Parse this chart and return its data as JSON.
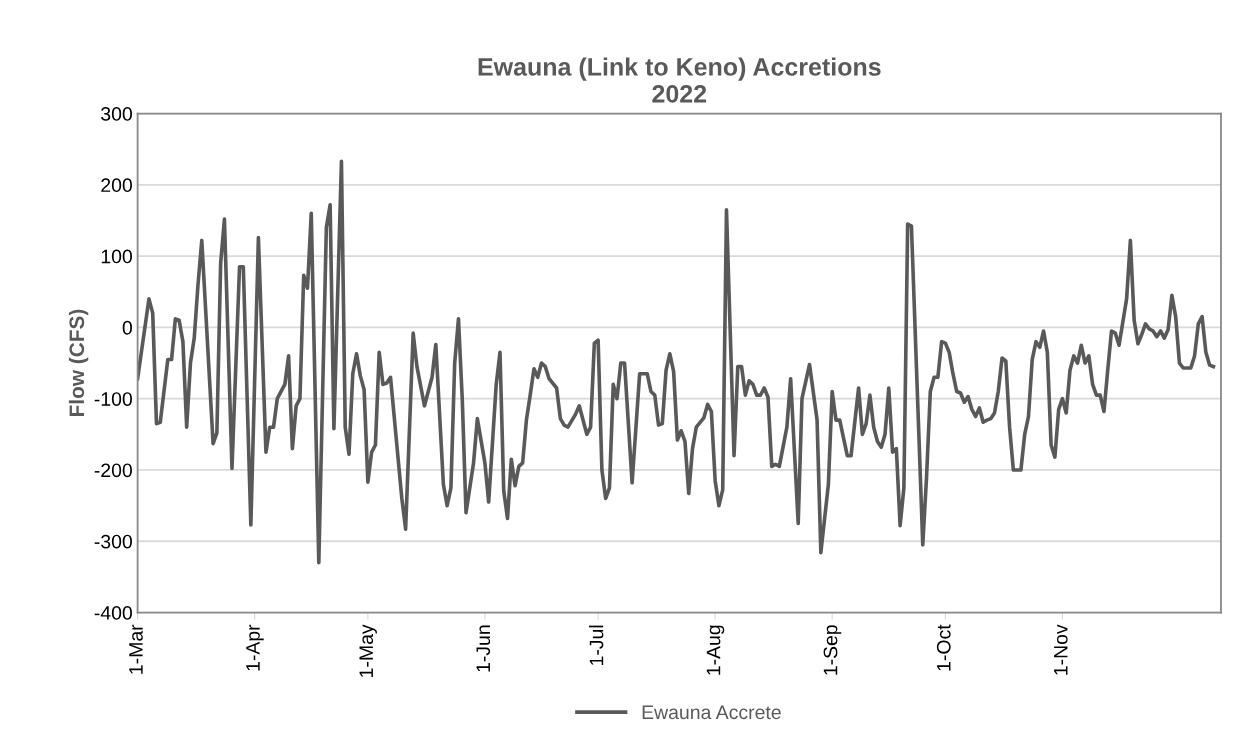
{
  "chart_data": {
    "type": "line",
    "title": "Ewauna (Link to Keno) Accretions\n2022",
    "ylabel": "Flow (CFS)",
    "xlim": [
      "2022-03-01",
      "2022-12-13"
    ],
    "ylim": [
      -400,
      300
    ],
    "yticks": [
      -400,
      -300,
      -200,
      -100,
      0,
      100,
      200,
      300
    ],
    "xticks": [
      {
        "value": "2022-03-01",
        "label": "1-Mar"
      },
      {
        "value": "2022-04-01",
        "label": "1-Apr"
      },
      {
        "value": "2022-05-01",
        "label": "1-May"
      },
      {
        "value": "2022-06-01",
        "label": "1-Jun"
      },
      {
        "value": "2022-07-01",
        "label": "1-Jul"
      },
      {
        "value": "2022-08-01",
        "label": "1-Aug"
      },
      {
        "value": "2022-09-01",
        "label": "1-Sep"
      },
      {
        "value": "2022-10-01",
        "label": "1-Oct"
      },
      {
        "value": "2022-11-01",
        "label": "1-Nov"
      }
    ],
    "grid": "y",
    "legend": "bottom",
    "marker": "none",
    "line_style": "solid",
    "series": [
      {
        "name": "Ewauna Accrete",
        "color": "#595959",
        "x": [
          "2022-03-01",
          "2022-03-04",
          "2022-03-05",
          "2022-03-06",
          "2022-03-07",
          "2022-03-09",
          "2022-03-10",
          "2022-03-11",
          "2022-03-12",
          "2022-03-13",
          "2022-03-14",
          "2022-03-15",
          "2022-03-16",
          "2022-03-17",
          "2022-03-18",
          "2022-03-21",
          "2022-03-22",
          "2022-03-23",
          "2022-03-24",
          "2022-03-26",
          "2022-03-28",
          "2022-03-29",
          "2022-03-31",
          "2022-04-02",
          "2022-04-04",
          "2022-04-05",
          "2022-04-06",
          "2022-04-07",
          "2022-04-09",
          "2022-04-10",
          "2022-04-11",
          "2022-04-12",
          "2022-04-13",
          "2022-04-14",
          "2022-04-15",
          "2022-04-16",
          "2022-04-18",
          "2022-04-20",
          "2022-04-21",
          "2022-04-22",
          "2022-04-24",
          "2022-04-25",
          "2022-04-26",
          "2022-04-27",
          "2022-04-28",
          "2022-04-29",
          "2022-04-30",
          "2022-05-01",
          "2022-05-02",
          "2022-05-03",
          "2022-05-04",
          "2022-05-05",
          "2022-05-06",
          "2022-05-07",
          "2022-05-10",
          "2022-05-11",
          "2022-05-13",
          "2022-05-14",
          "2022-05-16",
          "2022-05-18",
          "2022-05-19",
          "2022-05-21",
          "2022-05-22",
          "2022-05-23",
          "2022-05-24",
          "2022-05-25",
          "2022-05-26",
          "2022-05-27",
          "2022-05-29",
          "2022-05-30",
          "2022-06-01",
          "2022-06-02",
          "2022-06-04",
          "2022-06-05",
          "2022-06-06",
          "2022-06-07",
          "2022-06-08",
          "2022-06-09",
          "2022-06-10",
          "2022-06-11",
          "2022-06-12",
          "2022-06-13",
          "2022-06-14",
          "2022-06-15",
          "2022-06-16",
          "2022-06-17",
          "2022-06-18",
          "2022-06-20",
          "2022-06-21",
          "2022-06-22",
          "2022-06-23",
          "2022-06-25",
          "2022-06-26",
          "2022-06-28",
          "2022-06-29",
          "2022-06-30",
          "2022-07-01",
          "2022-07-02",
          "2022-07-03",
          "2022-07-04",
          "2022-07-05",
          "2022-07-06",
          "2022-07-07",
          "2022-07-08",
          "2022-07-10",
          "2022-07-12",
          "2022-07-14",
          "2022-07-15",
          "2022-07-16",
          "2022-07-17",
          "2022-07-18",
          "2022-07-19",
          "2022-07-20",
          "2022-07-21",
          "2022-07-22",
          "2022-07-23",
          "2022-07-24",
          "2022-07-25",
          "2022-07-26",
          "2022-07-27",
          "2022-07-29",
          "2022-07-30",
          "2022-07-31",
          "2022-08-01",
          "2022-08-02",
          "2022-08-03",
          "2022-08-04",
          "2022-08-06",
          "2022-08-07",
          "2022-08-08",
          "2022-08-09",
          "2022-08-10",
          "2022-08-11",
          "2022-08-12",
          "2022-08-13",
          "2022-08-14",
          "2022-08-15",
          "2022-08-16",
          "2022-08-17",
          "2022-08-18",
          "2022-08-20",
          "2022-08-21",
          "2022-08-23",
          "2022-08-24",
          "2022-08-26",
          "2022-08-28",
          "2022-08-29",
          "2022-08-31",
          "2022-09-01",
          "2022-09-02",
          "2022-09-03",
          "2022-09-05",
          "2022-09-06",
          "2022-09-08",
          "2022-09-09",
          "2022-09-10",
          "2022-09-11",
          "2022-09-12",
          "2022-09-13",
          "2022-09-14",
          "2022-09-15",
          "2022-09-16",
          "2022-09-17",
          "2022-09-18",
          "2022-09-19",
          "2022-09-20",
          "2022-09-21",
          "2022-09-22",
          "2022-09-25",
          "2022-09-26",
          "2022-09-27",
          "2022-09-28",
          "2022-09-29",
          "2022-09-30",
          "2022-10-01",
          "2022-10-02",
          "2022-10-03",
          "2022-10-04",
          "2022-10-05",
          "2022-10-06",
          "2022-10-07",
          "2022-10-08",
          "2022-10-09",
          "2022-10-10",
          "2022-10-11",
          "2022-10-12",
          "2022-10-13",
          "2022-10-14",
          "2022-10-15",
          "2022-10-16",
          "2022-10-17",
          "2022-10-18",
          "2022-10-19",
          "2022-10-21",
          "2022-10-22",
          "2022-10-23",
          "2022-10-24",
          "2022-10-25",
          "2022-10-26",
          "2022-10-27",
          "2022-10-28",
          "2022-10-29",
          "2022-10-30",
          "2022-10-31",
          "2022-11-01",
          "2022-11-02",
          "2022-11-03",
          "2022-11-04",
          "2022-11-05",
          "2022-11-06",
          "2022-11-07",
          "2022-11-08",
          "2022-11-09",
          "2022-11-10",
          "2022-11-11",
          "2022-11-12",
          "2022-11-13",
          "2022-11-14",
          "2022-11-15",
          "2022-11-16",
          "2022-11-18",
          "2022-11-19",
          "2022-11-20",
          "2022-11-21",
          "2022-11-22",
          "2022-11-23",
          "2022-11-24",
          "2022-11-25",
          "2022-11-26",
          "2022-11-27",
          "2022-11-28",
          "2022-11-29",
          "2022-11-30",
          "2022-12-01",
          "2022-12-02",
          "2022-12-03",
          "2022-12-05",
          "2022-12-06",
          "2022-12-07",
          "2022-12-08",
          "2022-12-09",
          "2022-12-10",
          "2022-12-11"
        ],
        "values": [
          -72,
          40,
          20,
          -135,
          -133,
          -45,
          -45,
          12,
          10,
          -20,
          -140,
          -50,
          -15,
          60,
          122,
          -163,
          -148,
          90,
          152,
          -198,
          85,
          85,
          -277,
          126,
          -175,
          -140,
          -140,
          -100,
          -80,
          -40,
          -170,
          -110,
          -100,
          73,
          55,
          160,
          -330,
          140,
          172,
          -142,
          233,
          -140,
          -178,
          -65,
          -37,
          -68,
          -87,
          -217,
          -175,
          -165,
          -35,
          -80,
          -78,
          -70,
          -240,
          -283,
          -8,
          -55,
          -110,
          -70,
          -24,
          -220,
          -250,
          -225,
          -50,
          12,
          -100,
          -260,
          -190,
          -128,
          -190,
          -245,
          -80,
          -35,
          -230,
          -268,
          -185,
          -222,
          -195,
          -190,
          -130,
          -95,
          -58,
          -70,
          -50,
          -55,
          -72,
          -85,
          -128,
          -137,
          -140,
          -122,
          -110,
          -150,
          -140,
          -22,
          -18,
          -200,
          -240,
          -225,
          -80,
          -100,
          -50,
          -50,
          -218,
          -65,
          -65,
          -90,
          -95,
          -137,
          -135,
          -60,
          -37,
          -62,
          -158,
          -145,
          -160,
          -233,
          -170,
          -140,
          -127,
          -108,
          -118,
          -215,
          -250,
          -228,
          165,
          -180,
          -55,
          -55,
          -95,
          -75,
          -80,
          -95,
          -95,
          -85,
          -98,
          -195,
          -192,
          -195,
          -140,
          -72,
          -275,
          -100,
          -52,
          -130,
          -316,
          -220,
          -90,
          -130,
          -130,
          -180,
          -180,
          -85,
          -150,
          -135,
          -95,
          -140,
          -160,
          -168,
          -150,
          -85,
          -175,
          -170,
          -278,
          -225,
          145,
          142,
          -305,
          -210,
          -90,
          -70,
          -70,
          -20,
          -22,
          -35,
          -65,
          -90,
          -92,
          -105,
          -97,
          -115,
          -125,
          -113,
          -133,
          -130,
          -128,
          -120,
          -90,
          -43,
          -47,
          -140,
          -200,
          -200,
          -150,
          -125,
          -45,
          -20,
          -28,
          -5,
          -35,
          -165,
          -182,
          -115,
          -100,
          -120,
          -60,
          -40,
          -50,
          -25,
          -50,
          -40,
          -80,
          -95,
          -95,
          -118,
          -60,
          -5,
          -8,
          -25,
          40,
          122,
          10,
          -23,
          -10,
          5,
          -2,
          -5,
          -13,
          -5,
          -15,
          -3,
          45,
          15,
          -50,
          -57,
          -57,
          -40,
          5,
          15,
          -35,
          -53,
          -55
        ]
      }
    ]
  }
}
